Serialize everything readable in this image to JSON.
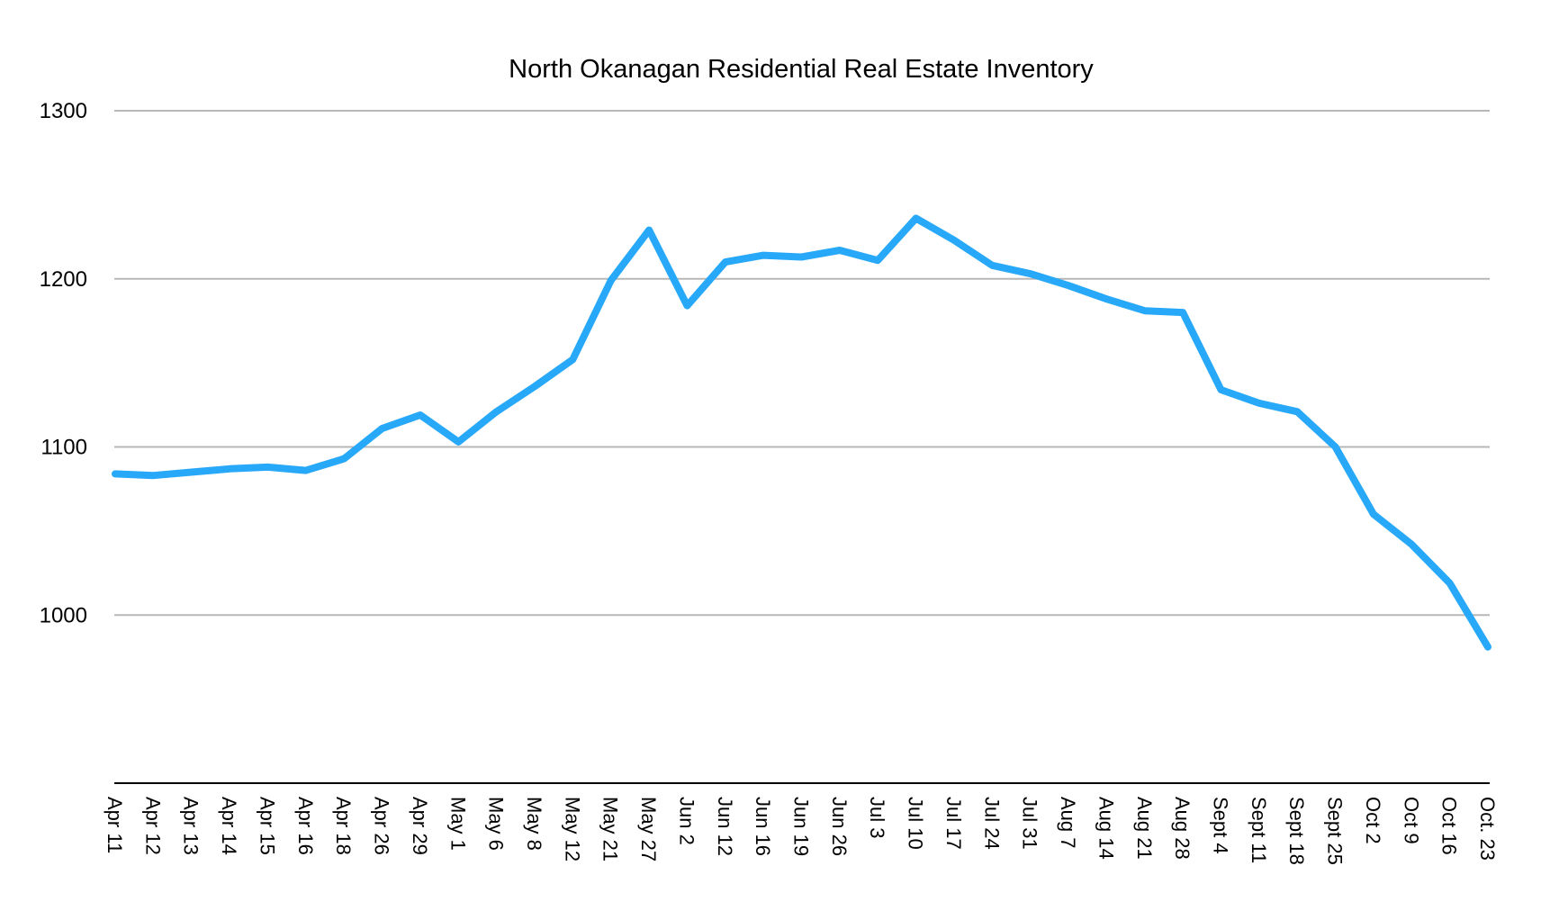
{
  "chart_data": {
    "type": "line",
    "title": "North Okanagan Residential Real Estate Inventory",
    "xlabel": "",
    "ylabel": "",
    "ylim": [
      900,
      1300
    ],
    "yticks": [
      1000,
      1100,
      1200,
      1300
    ],
    "grid": true,
    "legend": "none",
    "categories": [
      "Apr 11",
      "Apr 12",
      "Apr 13",
      "Apr 14",
      "Apr 15",
      "Apr 16",
      "Apr 18",
      "Apr 26",
      "Apr 29",
      "May 1",
      "May 6",
      "May 8",
      "May 12",
      "May 21",
      "May 27",
      "Jun 2",
      "Jun 12",
      "Jun 16",
      "Jun 19",
      "Jun 26",
      "Jul 3",
      "Jul 10",
      "Jul 17",
      "Jul 24",
      "Jul 31",
      "Aug 7",
      "Aug 14",
      "Aug 21",
      "Aug 28",
      "Sept 4",
      "Sept 11",
      "Sept 18",
      "Sept  25",
      "Oct 2",
      "Oct 9",
      "Oct 16",
      "Oct. 23"
    ],
    "series": [
      {
        "name": "",
        "color": "#27a8f8",
        "values": [
          1084,
          1083,
          1085,
          1087,
          1088,
          1086,
          1093,
          1111,
          1119,
          1103,
          1121,
          1136,
          1152,
          1199,
          1229,
          1184,
          1210,
          1214,
          1213,
          1217,
          1211,
          1236,
          1223,
          1208,
          1203,
          1196,
          1188,
          1181,
          1180,
          1134,
          1126,
          1121,
          1100,
          1060,
          1042,
          1019,
          981
        ]
      }
    ]
  }
}
